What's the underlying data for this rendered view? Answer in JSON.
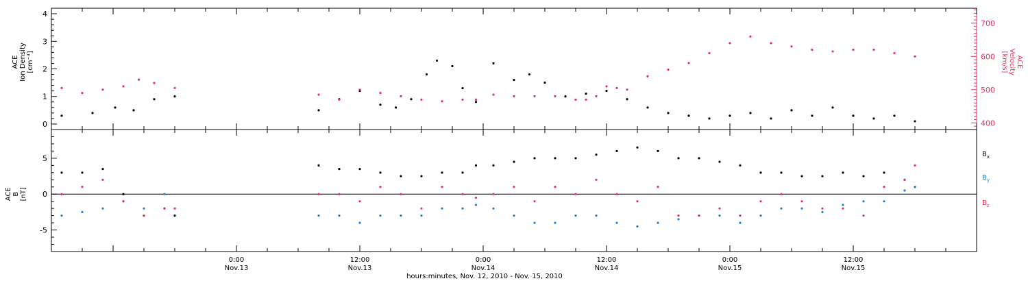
{
  "chart_data": [
    {
      "type": "scatter",
      "ylabel": "ACE\nIon Density\n[cm⁻³]",
      "y2label": "ACE\nVelocity\n[km/s]",
      "ylim": [
        -0.2,
        4.2
      ],
      "y2lim": [
        380,
        745
      ],
      "yticks": [
        0,
        1,
        2,
        3,
        4
      ],
      "y2ticks": [
        400,
        500,
        600,
        700
      ],
      "xlim_hours": [
        -18,
        72
      ],
      "series": [
        {
          "name": "",
          "color": "#000000",
          "axis": "left",
          "x": [
            -17,
            -14,
            -11.8,
            -10,
            -8,
            -6,
            8,
            10,
            12,
            14,
            15.5,
            17,
            18.5,
            19.5,
            21,
            22,
            23.3,
            25,
            27,
            28.5,
            30,
            32,
            34,
            36,
            38,
            40,
            42,
            44,
            46,
            48,
            50,
            52,
            54,
            56,
            58,
            60,
            62,
            64,
            66
          ],
          "y": [
            0.3,
            0.4,
            0.6,
            0.5,
            0.9,
            1.0,
            0.5,
            0.9,
            1.2,
            0.7,
            0.6,
            0.9,
            1.8,
            2.3,
            2.1,
            1.3,
            0.8,
            2.2,
            1.6,
            1.8,
            1.5,
            1.0,
            1.1,
            1.2,
            0.9,
            0.6,
            0.4,
            0.3,
            0.2,
            0.3,
            0.4,
            0.2,
            0.5,
            0.3,
            0.6,
            0.3,
            0.2,
            0.3,
            0.1
          ]
        },
        {
          "name": "",
          "color": "#e3325f",
          "axis": "right",
          "x": [
            -17,
            -15,
            -13,
            -11,
            -9.5,
            -8,
            -6,
            8,
            10,
            12,
            14,
            16,
            18,
            20,
            22,
            23.3,
            25,
            27,
            29,
            31,
            33,
            34,
            35,
            36,
            37,
            38,
            40,
            42,
            44,
            46,
            48,
            50,
            52,
            54,
            56,
            58,
            60,
            62,
            64,
            66
          ],
          "y": [
            505,
            490,
            500,
            510,
            530,
            520,
            505,
            485,
            470,
            500,
            490,
            480,
            470,
            465,
            470,
            470,
            485,
            480,
            480,
            480,
            470,
            470,
            480,
            510,
            505,
            500,
            540,
            560,
            580,
            610,
            640,
            660,
            640,
            630,
            620,
            615,
            620,
            620,
            610,
            600
          ]
        }
      ]
    },
    {
      "type": "scatter",
      "ylabel": "ACE\nB\n[nT]",
      "ylim": [
        -8,
        9
      ],
      "yticks": [
        -5,
        0,
        5
      ],
      "xlim_hours": [
        -18,
        72
      ],
      "zero_line": true,
      "xticks": [
        {
          "hour": 0,
          "label1": "0:00",
          "label2": "Nov.13"
        },
        {
          "hour": 12,
          "label1": "12:00",
          "label2": "Nov.13"
        },
        {
          "hour": 24,
          "label1": "0:00",
          "label2": "Nov.14"
        },
        {
          "hour": 36,
          "label1": "12:00",
          "label2": "Nov.14"
        },
        {
          "hour": 48,
          "label1": "0:00",
          "label2": "Nov.15"
        },
        {
          "hour": 60,
          "label1": "12:00",
          "label2": "Nov.15"
        }
      ],
      "xlabel": "hours:minutes, Nov. 12, 2010 - Nov. 15, 2010",
      "series": [
        {
          "name": "B",
          "sub": "x",
          "color": "#000000",
          "x": [
            -17,
            -15,
            -13,
            -11,
            -9,
            -7,
            -6,
            8,
            10,
            12,
            14,
            16,
            18,
            20,
            22,
            23.3,
            25,
            27,
            29,
            31,
            33,
            35,
            37,
            39,
            41,
            43,
            45,
            47,
            49,
            51,
            53,
            55,
            57,
            59,
            61,
            63,
            65,
            66
          ],
          "y": [
            3,
            3,
            3.5,
            0,
            -3,
            -2,
            -3,
            4,
            3.5,
            3.5,
            3,
            2.5,
            2.5,
            3,
            3,
            4,
            4,
            4.5,
            5,
            5,
            5,
            5.5,
            6,
            6.5,
            6,
            5,
            5,
            4.5,
            4,
            3,
            3,
            2.5,
            2.5,
            3,
            2.5,
            3,
            2,
            1
          ]
        },
        {
          "name": "B",
          "sub": "y",
          "color": "#1e7fd6",
          "x": [
            -17,
            -15,
            -13,
            -11,
            -9,
            -7,
            -6,
            8,
            10,
            12,
            14,
            16,
            18,
            20,
            22,
            23.3,
            25,
            27,
            29,
            31,
            33,
            35,
            37,
            39,
            41,
            43,
            45,
            47,
            49,
            51,
            53,
            55,
            57,
            59,
            61,
            63,
            65,
            66
          ],
          "y": [
            -3,
            -2.5,
            -2,
            -1,
            -2,
            0,
            -2,
            -3,
            -3,
            -4,
            -3,
            -3,
            -3,
            -2,
            -2,
            -1.5,
            -2,
            -3,
            -4,
            -4,
            -3,
            -3,
            -4,
            -4.5,
            -4,
            -3.5,
            -3,
            -3,
            -4,
            -3,
            -2,
            -2,
            -2.5,
            -1.5,
            -1,
            -1,
            0.5,
            1
          ]
        },
        {
          "name": "B",
          "sub": "z",
          "color": "#e3325f",
          "x": [
            -17,
            -15,
            -13,
            -11,
            -9,
            -7,
            -6,
            8,
            10,
            12,
            14,
            16,
            18,
            20,
            22,
            23.3,
            25,
            27,
            29,
            31,
            33,
            35,
            37,
            39,
            41,
            43,
            45,
            47,
            49,
            51,
            53,
            55,
            57,
            59,
            61,
            63,
            65,
            66
          ],
          "y": [
            0,
            1,
            2,
            -1,
            -3,
            -2,
            -2,
            0,
            0,
            -1,
            1,
            0,
            -2,
            1,
            0,
            -0.5,
            0,
            1,
            -1,
            1,
            0,
            2,
            0,
            -1,
            1,
            -3,
            -3,
            -2,
            -3,
            -1,
            0,
            -1,
            -2,
            -2,
            -3,
            1,
            2,
            4
          ]
        }
      ]
    }
  ]
}
